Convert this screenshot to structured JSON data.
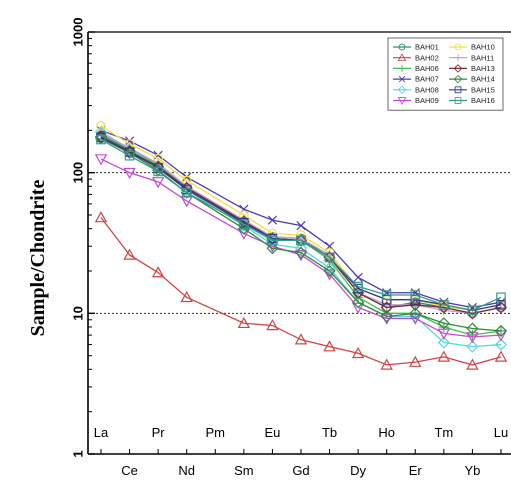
{
  "chart_data": {
    "type": "line",
    "ylabel": "Sample/Chondrite",
    "yscale": "log",
    "ylim": [
      1,
      1000
    ],
    "y_ticks": [
      "1",
      "10",
      "100",
      "1000"
    ],
    "reference_lines": [
      10,
      100
    ],
    "legend_position": "top-right",
    "categories": [
      "La",
      "Ce",
      "Pr",
      "Nd",
      "Pm",
      "Sm",
      "Eu",
      "Gd",
      "Tb",
      "Dy",
      "Ho",
      "Er",
      "Tm",
      "Yb",
      "Lu"
    ],
    "series": [
      {
        "name": "BAH01",
        "color": "#2f8c6e",
        "marker": "circle",
        "values": [
          185,
          145,
          112,
          78,
          null,
          45,
          35,
          34,
          25,
          14,
          11,
          12,
          11,
          10,
          11
        ]
      },
      {
        "name": "BAH02",
        "color": "#d04545",
        "marker": "triangle-up",
        "values": [
          48,
          26,
          19.5,
          13,
          null,
          8.5,
          8.2,
          6.5,
          5.8,
          5.2,
          4.3,
          4.5,
          4.9,
          4.3,
          4.9
        ]
      },
      {
        "name": "BAH06",
        "color": "#3fbf4c",
        "marker": "plus",
        "values": [
          190,
          148,
          113,
          78,
          null,
          43,
          33,
          33,
          24,
          13,
          10,
          10,
          8,
          7,
          7.5
        ]
      },
      {
        "name": "BAH07",
        "color": "#4b3db5",
        "marker": "x",
        "values": [
          200,
          168,
          133,
          93,
          null,
          55,
          46,
          42,
          30,
          18,
          14,
          14,
          12,
          11,
          12
        ]
      },
      {
        "name": "BAH08",
        "color": "#55d8e0",
        "marker": "diamond",
        "values": [
          195,
          148,
          108,
          75,
          null,
          42,
          31,
          29,
          21,
          12,
          9.5,
          9.5,
          6.2,
          5.8,
          6
        ]
      },
      {
        "name": "BAH09",
        "color": "#c34bd6",
        "marker": "triangle-down",
        "values": [
          125,
          100,
          86,
          63,
          null,
          37,
          30,
          26,
          19,
          11,
          9.2,
          9.2,
          7.2,
          6.8,
          7
        ]
      },
      {
        "name": "BAH10",
        "color": "#f2e040",
        "marker": "circle",
        "values": [
          215,
          160,
          126,
          88,
          null,
          50,
          37,
          36,
          27,
          15,
          12.5,
          12.5,
          11.2,
          10.5,
          11.5
        ]
      },
      {
        "name": "BAH11",
        "color": "#c39acb",
        "marker": "plus",
        "values": [
          190,
          150,
          116,
          80,
          null,
          46,
          35,
          34,
          26,
          14,
          11.5,
          11.5,
          10.5,
          10,
          11
        ]
      },
      {
        "name": "BAH13",
        "color": "#7a2b33",
        "marker": "diamond",
        "values": [
          180,
          142,
          110,
          78,
          null,
          45,
          34,
          33,
          25,
          14,
          11,
          11.5,
          11,
          10,
          11
        ]
      },
      {
        "name": "BAH14",
        "color": "#2f8a3a",
        "marker": "diamond",
        "values": [
          175,
          138,
          104,
          72,
          null,
          40,
          29,
          27,
          20,
          12,
          9.5,
          10,
          8.5,
          7.8,
          7.5
        ]
      },
      {
        "name": "BAH15",
        "color": "#2e3a8f",
        "marker": "square",
        "values": [
          178,
          140,
          108,
          76,
          null,
          44,
          34,
          33,
          25,
          15,
          12.5,
          12.5,
          11.5,
          10.5,
          11.5
        ]
      },
      {
        "name": "BAH16",
        "color": "#3a9a8a",
        "marker": "square",
        "values": [
          172,
          132,
          102,
          72,
          null,
          43,
          33,
          33,
          25,
          15.5,
          13.5,
          13.5,
          11.5,
          10.5,
          13
        ]
      }
    ]
  }
}
